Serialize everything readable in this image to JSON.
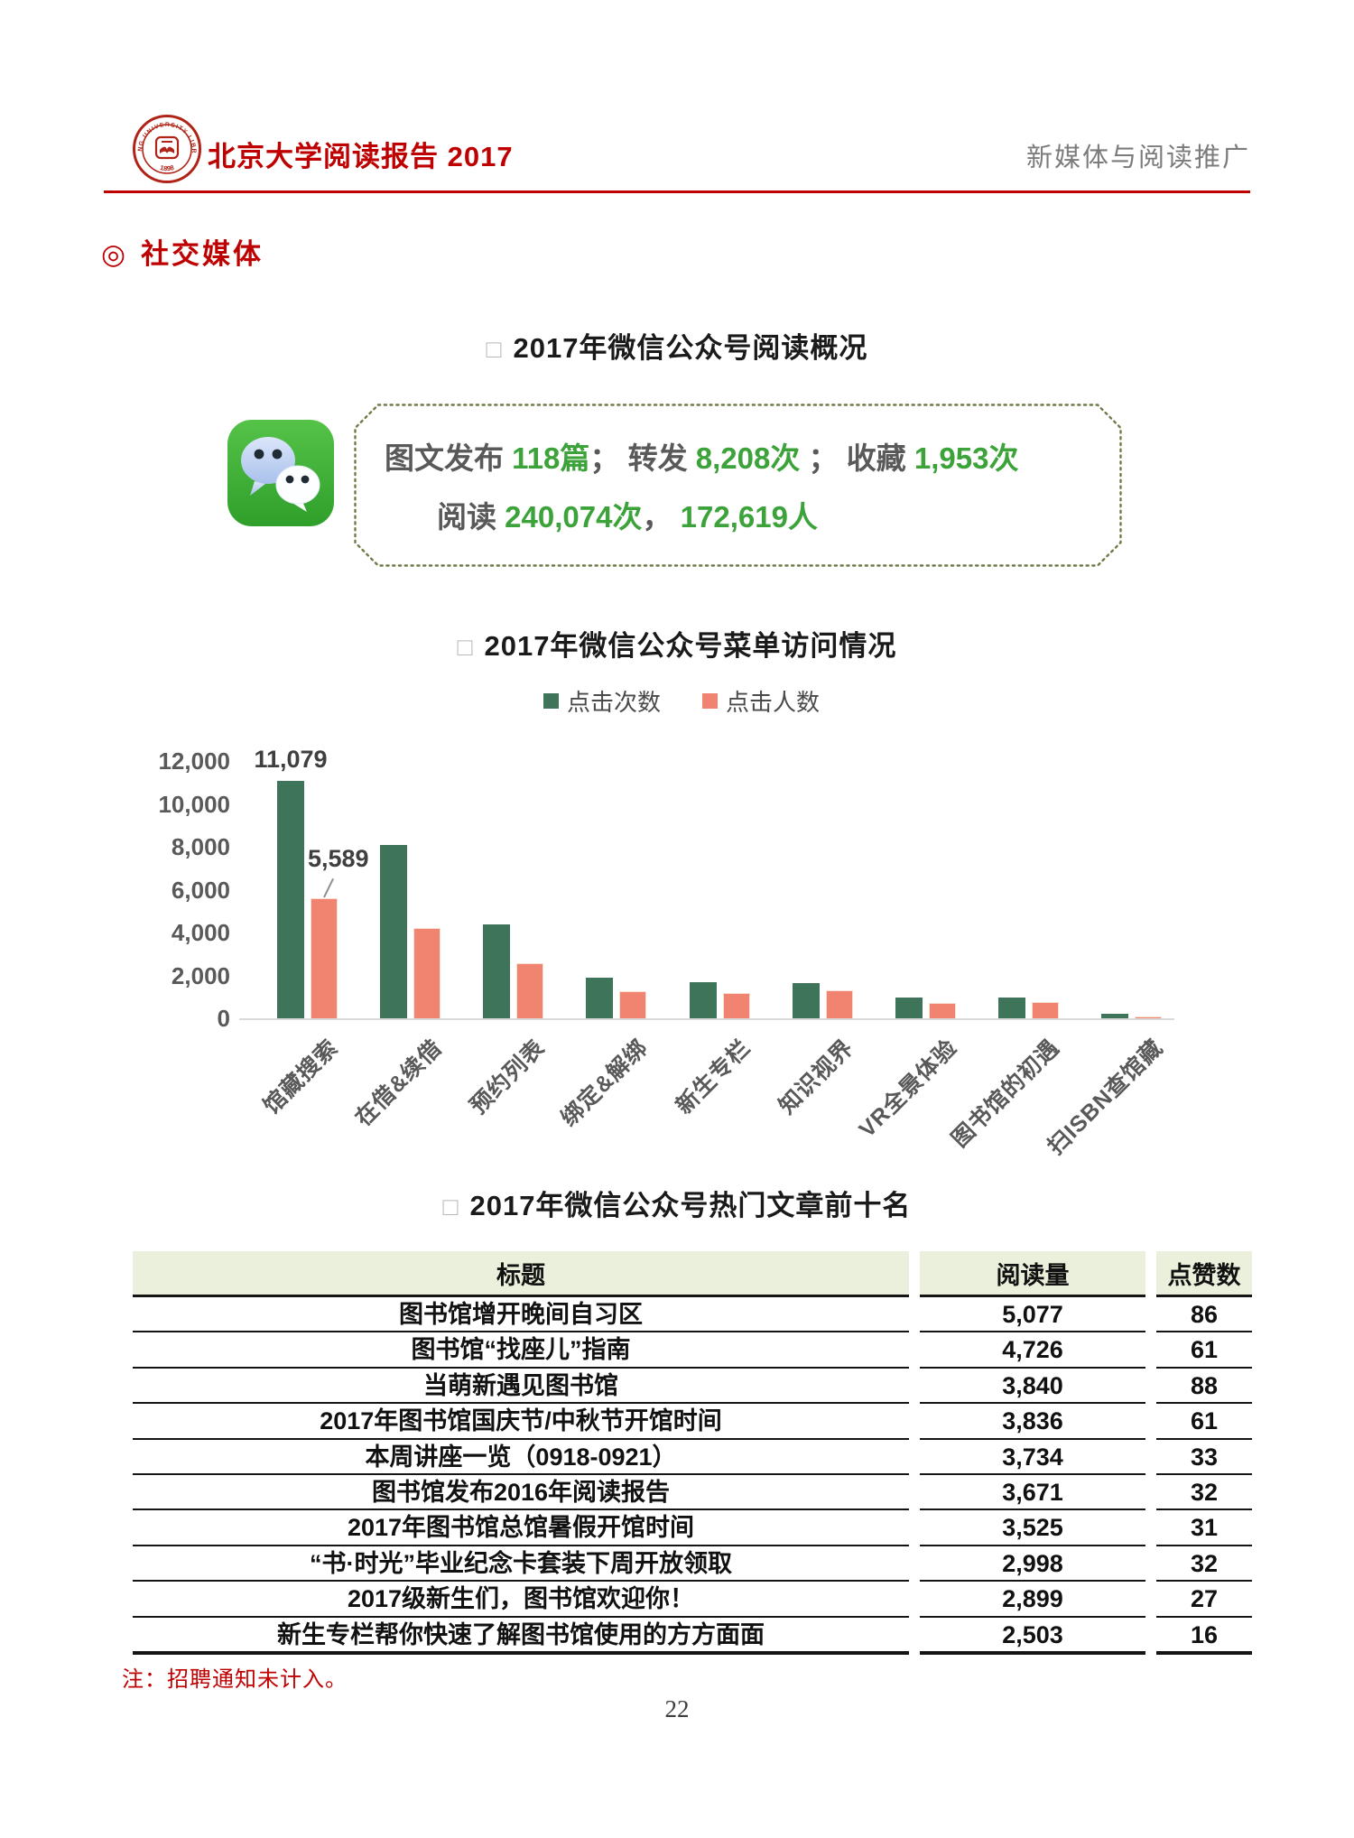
{
  "header": {
    "logo": {
      "arc_text": "PEKING UNIVERSITY LIBRARY",
      "year": "1898"
    },
    "title": "北京大学阅读报告 2017",
    "right_label": "新媒体与阅读推广"
  },
  "section": {
    "marker": "◎",
    "title": "社交媒体"
  },
  "overview": {
    "marker": "□",
    "title": "2017年微信公众号阅读概况",
    "box": {
      "rows": [
        {
          "segments": [
            {
              "text": "图文发布 ",
              "type": "label"
            },
            {
              "text": "118篇",
              "type": "value"
            },
            {
              "text": "； 转发 ",
              "type": "label"
            },
            {
              "text": "8,208次",
              "type": "value"
            },
            {
              "text": " ； 收藏 ",
              "type": "label"
            },
            {
              "text": "1,953次",
              "type": "value"
            }
          ]
        },
        {
          "segments": [
            {
              "text": "阅读 ",
              "type": "label"
            },
            {
              "text": "240,074次",
              "type": "value"
            },
            {
              "text": "， ",
              "type": "label"
            },
            {
              "text": "172,619人",
              "type": "value"
            }
          ]
        }
      ]
    }
  },
  "menu_chart": {
    "marker": "□",
    "title": "2017年微信公众号菜单访问情况"
  },
  "chart_data": {
    "type": "bar",
    "title": "2017年微信公众号菜单访问情况",
    "categories": [
      "馆藏搜索",
      "在借&续借",
      "预约列表",
      "绑定&解绑",
      "新生专栏",
      "知识视界",
      "VR全景体验",
      "图书馆的初遇",
      "扫ISBN查馆藏"
    ],
    "series": [
      {
        "name": "点击次数",
        "color": "#3E7459",
        "values": [
          11079,
          8100,
          4400,
          1900,
          1700,
          1650,
          950,
          950,
          200
        ]
      },
      {
        "name": "点击人数",
        "color": "#F08470",
        "values": [
          5589,
          4200,
          2550,
          1250,
          1200,
          1300,
          700,
          750,
          80
        ]
      }
    ],
    "ylim": [
      0,
      12000
    ],
    "yticks": [
      {
        "label": "12,000",
        "value": 12000
      },
      {
        "label": "10,000",
        "value": 10000
      },
      {
        "label": "8,000",
        "value": 8000
      },
      {
        "label": "6,000",
        "value": 6000
      },
      {
        "label": "4,000",
        "value": 4000
      },
      {
        "label": "2,000",
        "value": 2000
      },
      {
        "label": "0",
        "value": 0
      }
    ],
    "annotations": [
      {
        "series": 0,
        "index": 0,
        "text": "11,079",
        "leader": false
      },
      {
        "series": 1,
        "index": 0,
        "text": "5,589",
        "leader": true
      }
    ],
    "legend_position": "top",
    "grid": false
  },
  "articles": {
    "marker": "□",
    "title": "2017年微信公众号热门文章前十名",
    "columns": [
      "标题",
      "阅读量",
      "点赞数"
    ],
    "rows": [
      [
        "图书馆增开晚间自习区",
        "5,077",
        "86"
      ],
      [
        "图书馆“找座儿”指南",
        "4,726",
        "61"
      ],
      [
        "当萌新遇见图书馆",
        "3,840",
        "88"
      ],
      [
        "2017年图书馆国庆节/中秋节开馆时间",
        "3,836",
        "61"
      ],
      [
        "本周讲座一览（0918-0921）",
        "3,734",
        "33"
      ],
      [
        "图书馆发布2016年阅读报告",
        "3,671",
        "32"
      ],
      [
        "2017年图书馆总馆暑假开馆时间",
        "3,525",
        "31"
      ],
      [
        "“书·时光”毕业纪念卡套装下周开放领取",
        "2,998",
        "32"
      ],
      [
        "2017级新生们，图书馆欢迎你！",
        "2,899",
        "27"
      ],
      [
        "新生专栏帮你快速了解图书馆使用的方方面面",
        "2,503",
        "16"
      ]
    ]
  },
  "note": "注：招聘通知未计入。",
  "page_number": "22"
}
